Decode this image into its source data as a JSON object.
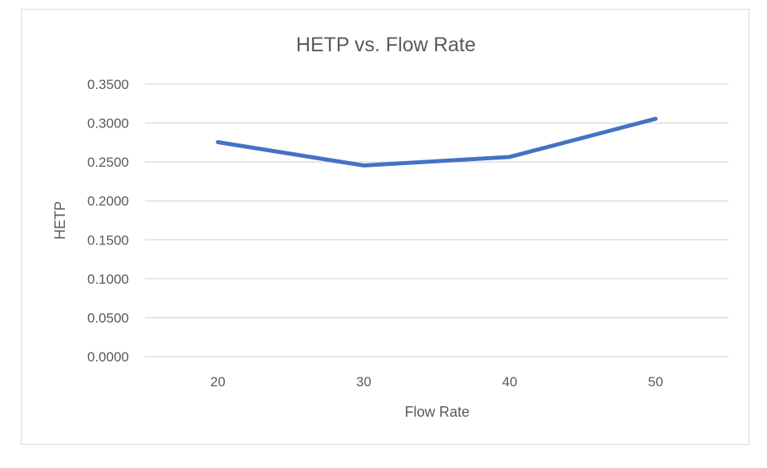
{
  "chart_data": {
    "type": "line",
    "title": "HETP vs. Flow Rate",
    "xlabel": "Flow Rate",
    "ylabel": "HETP",
    "categories": [
      "20",
      "30",
      "40",
      "50"
    ],
    "series": [
      {
        "values": [
          0.2755,
          0.2455,
          0.2565,
          0.3055
        ],
        "color": "#4472c4"
      }
    ],
    "ylim": [
      0,
      0.35
    ],
    "yticks": [
      "0.0000",
      "0.0500",
      "0.1000",
      "0.1500",
      "0.2000",
      "0.2500",
      "0.3000",
      "0.3500"
    ],
    "grid": true,
    "legend": "none"
  }
}
